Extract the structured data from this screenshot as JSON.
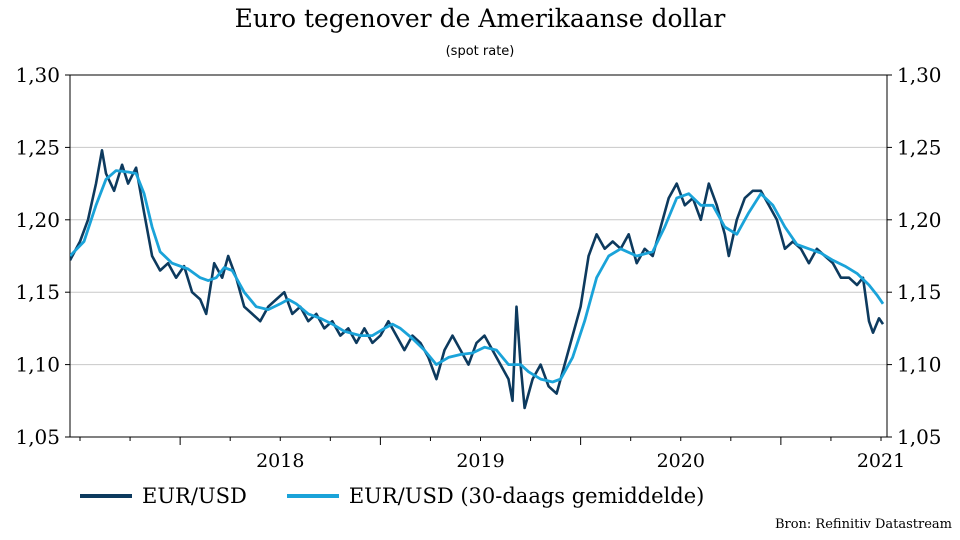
{
  "title": "Euro tegenover de Amerikaanse dollar",
  "subtitle": "(spot rate)",
  "source": "Bron: Refinitiv Datastream",
  "colors": {
    "series1": "#0d3a5e",
    "series2": "#1aa3d9",
    "grid": "#c8c8c8"
  },
  "chart_data": {
    "type": "line",
    "title": "Euro tegenover de Amerikaanse dollar",
    "subtitle": "(spot rate)",
    "xlabel": "",
    "ylabel": "",
    "xlim": [
      2017.45,
      2021.53
    ],
    "ylim": [
      1.05,
      1.3
    ],
    "y_ticks": [
      "1,30",
      "1,25",
      "1,20",
      "1,15",
      "1,10",
      "1,05"
    ],
    "y_tick_values": [
      1.3,
      1.25,
      1.2,
      1.15,
      1.1,
      1.05
    ],
    "x_tick_labels": [
      "2018",
      "2019",
      "2020",
      "2021"
    ],
    "x_tick_values": [
      2018,
      2019,
      2020,
      2021
    ],
    "grid": "horizontal",
    "legend_position": "bottom",
    "series": [
      {
        "name": "EUR/USD",
        "color": "#0d3a5e",
        "points": [
          [
            2017.45,
            1.172
          ],
          [
            2017.5,
            1.185
          ],
          [
            2017.54,
            1.2
          ],
          [
            2017.58,
            1.225
          ],
          [
            2017.61,
            1.248
          ],
          [
            2017.63,
            1.232
          ],
          [
            2017.67,
            1.22
          ],
          [
            2017.71,
            1.238
          ],
          [
            2017.74,
            1.225
          ],
          [
            2017.78,
            1.236
          ],
          [
            2017.82,
            1.205
          ],
          [
            2017.86,
            1.175
          ],
          [
            2017.9,
            1.165
          ],
          [
            2017.94,
            1.17
          ],
          [
            2017.98,
            1.16
          ],
          [
            2018.02,
            1.168
          ],
          [
            2018.06,
            1.15
          ],
          [
            2018.1,
            1.145
          ],
          [
            2018.13,
            1.135
          ],
          [
            2018.17,
            1.17
          ],
          [
            2018.21,
            1.16
          ],
          [
            2018.24,
            1.175
          ],
          [
            2018.28,
            1.16
          ],
          [
            2018.32,
            1.14
          ],
          [
            2018.36,
            1.135
          ],
          [
            2018.4,
            1.13
          ],
          [
            2018.44,
            1.14
          ],
          [
            2018.48,
            1.145
          ],
          [
            2018.52,
            1.15
          ],
          [
            2018.56,
            1.135
          ],
          [
            2018.6,
            1.14
          ],
          [
            2018.64,
            1.13
          ],
          [
            2018.68,
            1.135
          ],
          [
            2018.72,
            1.125
          ],
          [
            2018.76,
            1.13
          ],
          [
            2018.8,
            1.12
          ],
          [
            2018.84,
            1.125
          ],
          [
            2018.88,
            1.115
          ],
          [
            2018.92,
            1.125
          ],
          [
            2018.96,
            1.115
          ],
          [
            2019.0,
            1.12
          ],
          [
            2019.04,
            1.13
          ],
          [
            2019.08,
            1.12
          ],
          [
            2019.12,
            1.11
          ],
          [
            2019.16,
            1.12
          ],
          [
            2019.2,
            1.115
          ],
          [
            2019.24,
            1.105
          ],
          [
            2019.28,
            1.09
          ],
          [
            2019.32,
            1.11
          ],
          [
            2019.36,
            1.12
          ],
          [
            2019.4,
            1.11
          ],
          [
            2019.44,
            1.1
          ],
          [
            2019.48,
            1.115
          ],
          [
            2019.52,
            1.12
          ],
          [
            2019.56,
            1.11
          ],
          [
            2019.6,
            1.1
          ],
          [
            2019.64,
            1.09
          ],
          [
            2019.66,
            1.075
          ],
          [
            2019.68,
            1.14
          ],
          [
            2019.7,
            1.1
          ],
          [
            2019.72,
            1.07
          ],
          [
            2019.76,
            1.09
          ],
          [
            2019.8,
            1.1
          ],
          [
            2019.84,
            1.085
          ],
          [
            2019.88,
            1.08
          ],
          [
            2019.92,
            1.1
          ],
          [
            2019.96,
            1.12
          ],
          [
            2020.0,
            1.14
          ],
          [
            2020.04,
            1.175
          ],
          [
            2020.08,
            1.19
          ],
          [
            2020.12,
            1.18
          ],
          [
            2020.16,
            1.185
          ],
          [
            2020.2,
            1.18
          ],
          [
            2020.24,
            1.19
          ],
          [
            2020.28,
            1.17
          ],
          [
            2020.32,
            1.18
          ],
          [
            2020.36,
            1.175
          ],
          [
            2020.4,
            1.195
          ],
          [
            2020.44,
            1.215
          ],
          [
            2020.48,
            1.225
          ],
          [
            2020.52,
            1.21
          ],
          [
            2020.56,
            1.215
          ],
          [
            2020.6,
            1.2
          ],
          [
            2020.64,
            1.225
          ],
          [
            2020.68,
            1.21
          ],
          [
            2020.72,
            1.19
          ],
          [
            2020.74,
            1.175
          ],
          [
            2020.78,
            1.2
          ],
          [
            2020.82,
            1.215
          ],
          [
            2020.86,
            1.22
          ],
          [
            2020.9,
            1.22
          ],
          [
            2020.94,
            1.21
          ],
          [
            2020.98,
            1.2
          ],
          [
            2021.02,
            1.18
          ],
          [
            2021.06,
            1.185
          ],
          [
            2021.1,
            1.18
          ],
          [
            2021.14,
            1.17
          ],
          [
            2021.18,
            1.18
          ],
          [
            2021.22,
            1.175
          ],
          [
            2021.26,
            1.17
          ],
          [
            2021.3,
            1.16
          ],
          [
            2021.34,
            1.16
          ],
          [
            2021.38,
            1.155
          ],
          [
            2021.41,
            1.16
          ],
          [
            2021.44,
            1.13
          ],
          [
            2021.46,
            1.122
          ],
          [
            2021.49,
            1.132
          ],
          [
            2021.51,
            1.128
          ]
        ]
      },
      {
        "name": "EUR/USD (30-daags gemiddelde)",
        "color": "#1aa3d9",
        "points": [
          [
            2017.45,
            1.175
          ],
          [
            2017.52,
            1.185
          ],
          [
            2017.58,
            1.21
          ],
          [
            2017.63,
            1.228
          ],
          [
            2017.68,
            1.234
          ],
          [
            2017.74,
            1.233
          ],
          [
            2017.78,
            1.232
          ],
          [
            2017.82,
            1.218
          ],
          [
            2017.86,
            1.195
          ],
          [
            2017.9,
            1.178
          ],
          [
            2017.96,
            1.17
          ],
          [
            2018.04,
            1.166
          ],
          [
            2018.1,
            1.16
          ],
          [
            2018.14,
            1.158
          ],
          [
            2018.18,
            1.16
          ],
          [
            2018.22,
            1.167
          ],
          [
            2018.26,
            1.165
          ],
          [
            2018.32,
            1.15
          ],
          [
            2018.38,
            1.14
          ],
          [
            2018.44,
            1.138
          ],
          [
            2018.5,
            1.142
          ],
          [
            2018.54,
            1.145
          ],
          [
            2018.58,
            1.142
          ],
          [
            2018.64,
            1.135
          ],
          [
            2018.7,
            1.132
          ],
          [
            2018.76,
            1.128
          ],
          [
            2018.82,
            1.123
          ],
          [
            2018.9,
            1.12
          ],
          [
            2018.96,
            1.12
          ],
          [
            2019.02,
            1.125
          ],
          [
            2019.06,
            1.128
          ],
          [
            2019.1,
            1.125
          ],
          [
            2019.16,
            1.118
          ],
          [
            2019.22,
            1.11
          ],
          [
            2019.28,
            1.1
          ],
          [
            2019.34,
            1.105
          ],
          [
            2019.4,
            1.107
          ],
          [
            2019.46,
            1.108
          ],
          [
            2019.52,
            1.112
          ],
          [
            2019.58,
            1.11
          ],
          [
            2019.64,
            1.1
          ],
          [
            2019.7,
            1.1
          ],
          [
            2019.74,
            1.095
          ],
          [
            2019.8,
            1.09
          ],
          [
            2019.86,
            1.088
          ],
          [
            2019.9,
            1.09
          ],
          [
            2019.96,
            1.105
          ],
          [
            2020.02,
            1.13
          ],
          [
            2020.08,
            1.16
          ],
          [
            2020.14,
            1.175
          ],
          [
            2020.2,
            1.18
          ],
          [
            2020.28,
            1.175
          ],
          [
            2020.36,
            1.178
          ],
          [
            2020.42,
            1.195
          ],
          [
            2020.48,
            1.215
          ],
          [
            2020.54,
            1.218
          ],
          [
            2020.6,
            1.21
          ],
          [
            2020.66,
            1.21
          ],
          [
            2020.72,
            1.195
          ],
          [
            2020.78,
            1.19
          ],
          [
            2020.84,
            1.205
          ],
          [
            2020.9,
            1.218
          ],
          [
            2020.96,
            1.21
          ],
          [
            2021.02,
            1.195
          ],
          [
            2021.08,
            1.183
          ],
          [
            2021.14,
            1.18
          ],
          [
            2021.2,
            1.177
          ],
          [
            2021.26,
            1.172
          ],
          [
            2021.32,
            1.168
          ],
          [
            2021.38,
            1.163
          ],
          [
            2021.44,
            1.155
          ],
          [
            2021.48,
            1.148
          ],
          [
            2021.51,
            1.142
          ]
        ]
      }
    ]
  }
}
